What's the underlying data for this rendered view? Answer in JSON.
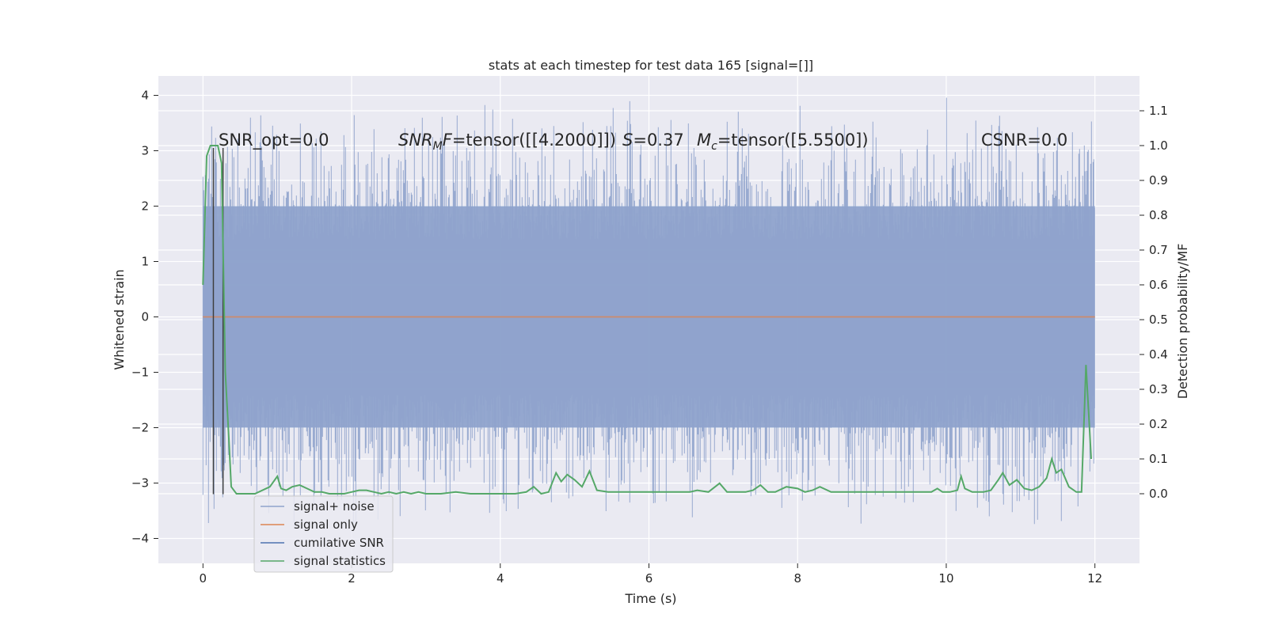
{
  "chart_data": {
    "type": "line",
    "title": "stats at each timestep for test data 165 [signal=[]]",
    "xlabel": "Time (s)",
    "ylabel": "Whitened strain",
    "y2label": "Detection probability/MF",
    "xlim": [
      -0.6,
      12.6
    ],
    "ylim": [
      -4.45,
      4.35
    ],
    "y2lim": [
      -0.2,
      1.2
    ],
    "x_ticks": [
      0,
      2,
      4,
      6,
      8,
      10,
      12
    ],
    "y_ticks": [
      -4,
      -3,
      -2,
      -1,
      0,
      1,
      2,
      3,
      4
    ],
    "y2_ticks": [
      0.0,
      0.1,
      0.2,
      0.3,
      0.4,
      0.5,
      0.6,
      0.7,
      0.8,
      0.9,
      1.0,
      1.1
    ],
    "grid": true,
    "legend_placement": "lower-left",
    "annotations": {
      "snr_opt": "SNR_opt=0.0",
      "snr_mf_italic": "SNR",
      "snr_mf_sub": "M",
      "snr_mf_italic2": "F",
      "snr_mf_value": "=tensor([[4.2000]])",
      "s_italic": "S",
      "s_value": "=0.37",
      "mc_italic": "M",
      "mc_sub": "c",
      "mc_value": "=tensor([5.5500])",
      "csnr": "CSNR=0.0"
    },
    "colors": {
      "background": "#eaeaf2",
      "grid": "#ffffff",
      "noise": "#8fa3cc",
      "signal": "#dd8452",
      "cumulative": "#4c72b0",
      "statistics": "#55a868",
      "vlines": "#404040"
    },
    "series": [
      {
        "name": "signal+ noise",
        "description_of_band": "whitened strain samples oscillating between about -2 and 2, with spikes to about ±4",
        "x_range": [
          0,
          12
        ],
        "envelope": [
          -2.0,
          2.0
        ]
      },
      {
        "name": "signal only",
        "x": [
          0,
          12
        ],
        "y": [
          0,
          0
        ]
      },
      {
        "name": "cumilative SNR",
        "x": [],
        "y": []
      },
      {
        "name": "signal statistics",
        "axis": "right",
        "x": [
          0.0,
          0.05,
          0.1,
          0.15,
          0.2,
          0.25,
          0.3,
          0.35,
          0.38,
          0.45,
          0.55,
          0.7,
          0.9,
          1.0,
          1.05,
          1.12,
          1.2,
          1.3,
          1.4,
          1.5,
          1.6,
          1.7,
          1.8,
          1.9,
          2.0,
          2.1,
          2.2,
          2.3,
          2.4,
          2.5,
          2.6,
          2.7,
          2.8,
          2.9,
          3.0,
          3.2,
          3.4,
          3.6,
          3.8,
          4.0,
          4.2,
          4.35,
          4.45,
          4.55,
          4.65,
          4.75,
          4.82,
          4.9,
          5.0,
          5.1,
          5.2,
          5.3,
          5.45,
          5.6,
          5.8,
          6.0,
          6.2,
          6.4,
          6.55,
          6.65,
          6.8,
          6.95,
          7.05,
          7.15,
          7.3,
          7.4,
          7.5,
          7.6,
          7.7,
          7.85,
          8.0,
          8.1,
          8.2,
          8.3,
          8.45,
          8.6,
          8.8,
          9.0,
          9.2,
          9.4,
          9.6,
          9.8,
          9.88,
          9.95,
          10.05,
          10.15,
          10.2,
          10.25,
          10.35,
          10.45,
          10.5,
          10.6,
          10.7,
          10.76,
          10.85,
          10.95,
          11.05,
          11.15,
          11.25,
          11.35,
          11.42,
          11.48,
          11.55,
          11.65,
          11.75,
          11.82,
          11.88,
          11.95
        ],
        "y": [
          0.6,
          0.97,
          1.0,
          1.0,
          1.0,
          0.95,
          0.35,
          0.15,
          0.02,
          0.0,
          0.0,
          0.0,
          0.02,
          0.05,
          0.015,
          0.01,
          0.02,
          0.025,
          0.015,
          0.005,
          0.005,
          0.0,
          0.0,
          0.0,
          0.005,
          0.01,
          0.01,
          0.005,
          0.0,
          0.005,
          0.0,
          0.005,
          0.0,
          0.005,
          0.0,
          0.0,
          0.005,
          0.0,
          0.0,
          0.0,
          0.0,
          0.005,
          0.02,
          0.0,
          0.005,
          0.06,
          0.035,
          0.055,
          0.04,
          0.02,
          0.065,
          0.01,
          0.005,
          0.005,
          0.005,
          0.005,
          0.005,
          0.005,
          0.005,
          0.01,
          0.005,
          0.03,
          0.005,
          0.005,
          0.005,
          0.01,
          0.025,
          0.005,
          0.005,
          0.02,
          0.015,
          0.005,
          0.01,
          0.02,
          0.005,
          0.005,
          0.005,
          0.005,
          0.005,
          0.005,
          0.005,
          0.005,
          0.015,
          0.005,
          0.005,
          0.01,
          0.05,
          0.015,
          0.005,
          0.005,
          0.005,
          0.01,
          0.04,
          0.06,
          0.025,
          0.04,
          0.015,
          0.01,
          0.02,
          0.045,
          0.1,
          0.06,
          0.07,
          0.02,
          0.005,
          0.005,
          0.37,
          0.1
        ]
      }
    ],
    "vlines": [
      {
        "x": 0.14,
        "y_from": -3.2,
        "y_to": 3.05
      },
      {
        "x": 0.27,
        "y_from": -3.2,
        "y_to": 3.05
      }
    ]
  }
}
